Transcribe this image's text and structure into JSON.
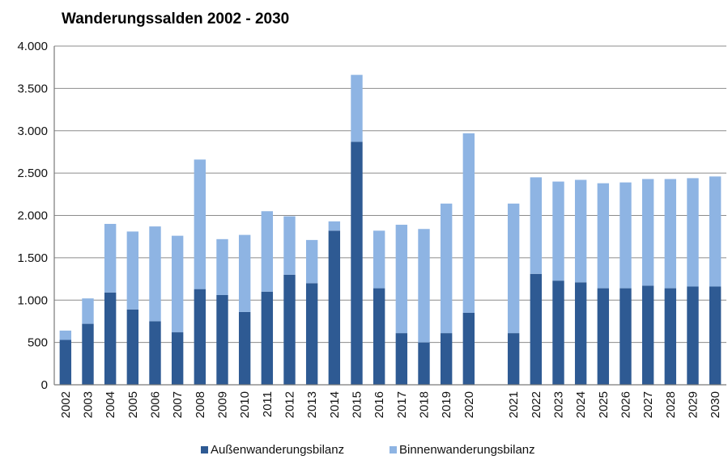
{
  "chart_data": {
    "type": "bar",
    "stacked": true,
    "title": "Wanderungssalden 2002 - 2030",
    "xlabel": "",
    "ylabel": "",
    "categories": [
      "2002",
      "2003",
      "2004",
      "2005",
      "2006",
      "2007",
      "2008",
      "2009",
      "2010",
      "2011",
      "2012",
      "2013",
      "2014",
      "2015",
      "2016",
      "2017",
      "2018",
      "2019",
      "2020",
      "",
      "2021",
      "2022",
      "2023",
      "2024",
      "2025",
      "2026",
      "2027",
      "2028",
      "2029",
      "2030"
    ],
    "series": [
      {
        "name": "Außenwanderungsbilanz",
        "color": "#2E5A93",
        "values": [
          530,
          720,
          1090,
          890,
          750,
          620,
          1130,
          1060,
          860,
          1100,
          1300,
          1200,
          1820,
          2870,
          1140,
          610,
          500,
          610,
          850,
          null,
          610,
          1310,
          1230,
          1210,
          1140,
          1140,
          1170,
          1140,
          1160,
          1160
        ]
      },
      {
        "name": "Binnenwanderungsbilanz",
        "color": "#8EB4E3",
        "values": [
          110,
          300,
          810,
          920,
          1120,
          1140,
          1530,
          660,
          910,
          950,
          690,
          510,
          110,
          790,
          680,
          1280,
          1340,
          1530,
          2120,
          null,
          1530,
          1140,
          1170,
          1210,
          1240,
          1250,
          1260,
          1290,
          1280,
          1300
        ]
      }
    ],
    "ylim": [
      0,
      4000
    ],
    "yticks": [
      0,
      500,
      1000,
      1500,
      2000,
      2500,
      3000,
      3500,
      4000
    ],
    "ytick_labels": [
      "0",
      "500",
      "1.000",
      "1.500",
      "2.000",
      "2.500",
      "3.000",
      "3.500",
      "4.000"
    ],
    "grid": true,
    "legend": "bottom"
  }
}
